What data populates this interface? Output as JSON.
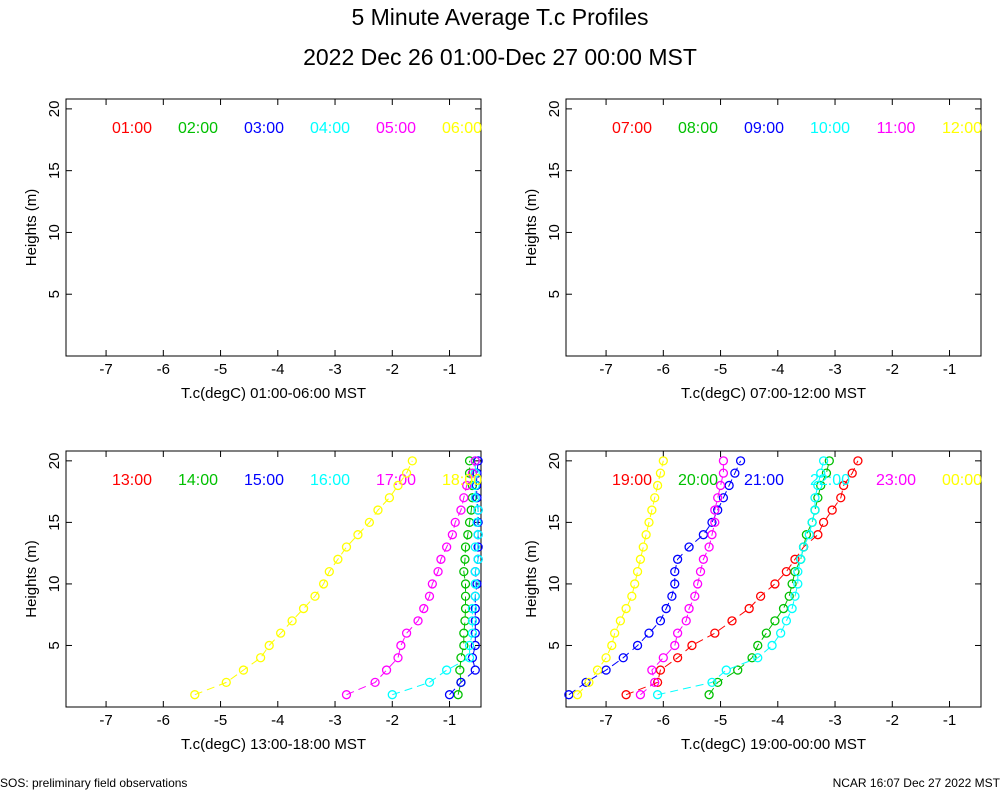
{
  "title": "5 Minute Average T.c Profiles",
  "subtitle": "2022 Dec 26 01:00-Dec 27 00:00 MST",
  "footer_left": "SOS: preliminary field observations",
  "footer_right": "NCAR 16:07 Dec 27 2022 MST",
  "chart_data": [
    {
      "type": "scatter",
      "xlabel": "T.c(degC) 01:00-06:00 MST",
      "ylabel": "Heights (m)",
      "xlim": [
        -7.7,
        -0.45
      ],
      "ylim": [
        0,
        20.8
      ],
      "xticks": [
        -7,
        -6,
        -5,
        -4,
        -3,
        -2,
        -1
      ],
      "yticks": [
        5,
        10,
        15,
        20
      ],
      "series": [
        {
          "name": "01:00",
          "color": "#ff0000",
          "points": []
        },
        {
          "name": "02:00",
          "color": "#00c000",
          "points": []
        },
        {
          "name": "03:00",
          "color": "#0000ff",
          "points": []
        },
        {
          "name": "04:00",
          "color": "#00ffff",
          "points": []
        },
        {
          "name": "05:00",
          "color": "#ff00ff",
          "points": []
        },
        {
          "name": "06:00",
          "color": "#ffff00",
          "points": []
        }
      ]
    },
    {
      "type": "scatter",
      "xlabel": "T.c(degC) 07:00-12:00 MST",
      "ylabel": "Heights (m)",
      "xlim": [
        -7.7,
        -0.45
      ],
      "ylim": [
        0,
        20.8
      ],
      "xticks": [
        -7,
        -6,
        -5,
        -4,
        -3,
        -2,
        -1
      ],
      "yticks": [
        5,
        10,
        15,
        20
      ],
      "series": [
        {
          "name": "07:00",
          "color": "#ff0000",
          "points": []
        },
        {
          "name": "08:00",
          "color": "#00c000",
          "points": []
        },
        {
          "name": "09:00",
          "color": "#0000ff",
          "points": []
        },
        {
          "name": "10:00",
          "color": "#00ffff",
          "points": []
        },
        {
          "name": "11:00",
          "color": "#ff00ff",
          "points": []
        },
        {
          "name": "12:00",
          "color": "#ffff00",
          "points": []
        }
      ]
    },
    {
      "type": "scatter",
      "xlabel": "T.c(degC) 13:00-18:00 MST",
      "ylabel": "Heights (m)",
      "xlim": [
        -7.7,
        -0.45
      ],
      "ylim": [
        0,
        20.8
      ],
      "xticks": [
        -7,
        -6,
        -5,
        -4,
        -3,
        -2,
        -1
      ],
      "yticks": [
        5,
        10,
        15,
        20
      ],
      "series": [
        {
          "name": "13:00",
          "color": "#ff0000",
          "points": []
        },
        {
          "name": "14:00",
          "color": "#00c000",
          "points": [
            [
              -0.85,
              1
            ],
            [
              -0.8,
              2
            ],
            [
              -0.82,
              3
            ],
            [
              -0.8,
              4
            ],
            [
              -0.75,
              5
            ],
            [
              -0.75,
              6
            ],
            [
              -0.73,
              7
            ],
            [
              -0.72,
              8
            ],
            [
              -0.72,
              9
            ],
            [
              -0.72,
              10
            ],
            [
              -0.75,
              11
            ],
            [
              -0.73,
              12
            ],
            [
              -0.72,
              13
            ],
            [
              -0.68,
              14
            ],
            [
              -0.65,
              15
            ],
            [
              -0.62,
              16
            ],
            [
              -0.6,
              17
            ],
            [
              -0.6,
              18
            ],
            [
              -0.65,
              19
            ],
            [
              -0.65,
              20
            ]
          ]
        },
        {
          "name": "15:00",
          "color": "#0000ff",
          "points": [
            [
              -1.0,
              1
            ],
            [
              -0.8,
              2
            ],
            [
              -0.55,
              3
            ],
            [
              -0.6,
              4
            ],
            [
              -0.55,
              5
            ],
            [
              -0.55,
              6
            ],
            [
              -0.55,
              7
            ],
            [
              -0.55,
              8
            ],
            [
              -0.55,
              9
            ],
            [
              -0.52,
              10
            ],
            [
              -0.55,
              11
            ],
            [
              -0.5,
              12
            ],
            [
              -0.5,
              13
            ],
            [
              -0.5,
              14
            ],
            [
              -0.5,
              15
            ],
            [
              -0.5,
              16
            ],
            [
              -0.52,
              17
            ],
            [
              -0.53,
              18
            ],
            [
              -0.52,
              19
            ],
            [
              -0.5,
              20
            ]
          ]
        },
        {
          "name": "16:00",
          "color": "#00ffff",
          "points": [
            [
              -2.0,
              1
            ],
            [
              -1.35,
              2
            ],
            [
              -1.05,
              3
            ],
            [
              -0.65,
              4
            ],
            [
              -0.65,
              5
            ],
            [
              -0.6,
              6
            ],
            [
              -0.6,
              7
            ],
            [
              -0.6,
              8
            ],
            [
              -0.55,
              9
            ],
            [
              -0.55,
              10
            ],
            [
              -0.55,
              11
            ],
            [
              -0.5,
              12
            ],
            [
              -0.55,
              13
            ],
            [
              -0.5,
              14
            ],
            [
              -0.52,
              15
            ],
            [
              -0.5,
              16
            ],
            [
              -0.55,
              17
            ],
            [
              -0.55,
              18
            ],
            [
              -0.55,
              19
            ],
            [
              -0.55,
              20
            ]
          ]
        },
        {
          "name": "17:00",
          "color": "#ff00ff",
          "points": [
            [
              -2.8,
              1
            ],
            [
              -2.3,
              2
            ],
            [
              -2.1,
              3
            ],
            [
              -1.9,
              4
            ],
            [
              -1.85,
              5
            ],
            [
              -1.75,
              6
            ],
            [
              -1.55,
              7
            ],
            [
              -1.45,
              8
            ],
            [
              -1.35,
              9
            ],
            [
              -1.3,
              10
            ],
            [
              -1.2,
              11
            ],
            [
              -1.15,
              12
            ],
            [
              -1.05,
              13
            ],
            [
              -0.95,
              14
            ],
            [
              -0.9,
              15
            ],
            [
              -0.8,
              16
            ],
            [
              -0.75,
              17
            ],
            [
              -0.7,
              18
            ],
            [
              -0.6,
              19
            ],
            [
              -0.55,
              20
            ]
          ]
        },
        {
          "name": "18:00",
          "color": "#ffff00",
          "points": [
            [
              -5.45,
              1
            ],
            [
              -4.9,
              2
            ],
            [
              -4.6,
              3
            ],
            [
              -4.3,
              4
            ],
            [
              -4.15,
              5
            ],
            [
              -3.95,
              6
            ],
            [
              -3.75,
              7
            ],
            [
              -3.55,
              8
            ],
            [
              -3.35,
              9
            ],
            [
              -3.2,
              10
            ],
            [
              -3.1,
              11
            ],
            [
              -2.95,
              12
            ],
            [
              -2.8,
              13
            ],
            [
              -2.6,
              14
            ],
            [
              -2.4,
              15
            ],
            [
              -2.25,
              16
            ],
            [
              -2.05,
              17
            ],
            [
              -1.9,
              18
            ],
            [
              -1.75,
              19
            ],
            [
              -1.65,
              20
            ]
          ]
        }
      ]
    },
    {
      "type": "scatter",
      "xlabel": "T.c(degC) 19:00-00:00 MST",
      "ylabel": "Heights (m)",
      "xlim": [
        -7.7,
        -0.45
      ],
      "ylim": [
        0,
        20.8
      ],
      "xticks": [
        -7,
        -6,
        -5,
        -4,
        -3,
        -2,
        -1
      ],
      "yticks": [
        5,
        10,
        15,
        20
      ],
      "series": [
        {
          "name": "19:00",
          "color": "#ff0000",
          "points": [
            [
              -6.65,
              1
            ],
            [
              -6.1,
              2
            ],
            [
              -6.05,
              3
            ],
            [
              -5.75,
              4
            ],
            [
              -5.5,
              5
            ],
            [
              -5.1,
              6
            ],
            [
              -4.8,
              7
            ],
            [
              -4.5,
              8
            ],
            [
              -4.3,
              9
            ],
            [
              -4.05,
              10
            ],
            [
              -3.85,
              11
            ],
            [
              -3.7,
              12
            ],
            [
              -3.55,
              13
            ],
            [
              -3.3,
              14
            ],
            [
              -3.2,
              15
            ],
            [
              -3.05,
              16
            ],
            [
              -2.9,
              17
            ],
            [
              -2.85,
              18
            ],
            [
              -2.7,
              19
            ],
            [
              -2.6,
              20
            ]
          ]
        },
        {
          "name": "20:00",
          "color": "#00c000",
          "points": [
            [
              -5.2,
              1
            ],
            [
              -5.05,
              2
            ],
            [
              -4.7,
              3
            ],
            [
              -4.45,
              4
            ],
            [
              -4.35,
              5
            ],
            [
              -4.2,
              6
            ],
            [
              -4.05,
              7
            ],
            [
              -3.9,
              8
            ],
            [
              -3.8,
              9
            ],
            [
              -3.75,
              10
            ],
            [
              -3.7,
              11
            ],
            [
              -3.6,
              12
            ],
            [
              -3.55,
              13
            ],
            [
              -3.5,
              14
            ],
            [
              -3.4,
              15
            ],
            [
              -3.35,
              16
            ],
            [
              -3.3,
              17
            ],
            [
              -3.25,
              18
            ],
            [
              -3.15,
              19
            ],
            [
              -3.1,
              20
            ]
          ]
        },
        {
          "name": "21:00",
          "color": "#0000ff",
          "points": [
            [
              -7.65,
              1
            ],
            [
              -7.35,
              2
            ],
            [
              -7.0,
              3
            ],
            [
              -6.7,
              4
            ],
            [
              -6.45,
              5
            ],
            [
              -6.25,
              6
            ],
            [
              -6.05,
              7
            ],
            [
              -5.95,
              8
            ],
            [
              -5.85,
              9
            ],
            [
              -5.8,
              10
            ],
            [
              -5.8,
              11
            ],
            [
              -5.75,
              12
            ],
            [
              -5.55,
              13
            ],
            [
              -5.3,
              14
            ],
            [
              -5.15,
              15
            ],
            [
              -5.05,
              16
            ],
            [
              -4.95,
              17
            ],
            [
              -4.85,
              18
            ],
            [
              -4.75,
              19
            ],
            [
              -4.65,
              20
            ]
          ]
        },
        {
          "name": "22:00",
          "color": "#00ffff",
          "points": [
            [
              -6.1,
              1
            ],
            [
              -5.15,
              2
            ],
            [
              -4.9,
              3
            ],
            [
              -4.35,
              4
            ],
            [
              -4.1,
              5
            ],
            [
              -3.95,
              6
            ],
            [
              -3.85,
              7
            ],
            [
              -3.75,
              8
            ],
            [
              -3.7,
              9
            ],
            [
              -3.65,
              10
            ],
            [
              -3.65,
              11
            ],
            [
              -3.6,
              12
            ],
            [
              -3.55,
              13
            ],
            [
              -3.45,
              14
            ],
            [
              -3.4,
              15
            ],
            [
              -3.35,
              16
            ],
            [
              -3.35,
              17
            ],
            [
              -3.3,
              18
            ],
            [
              -3.25,
              19
            ],
            [
              -3.2,
              20
            ]
          ]
        },
        {
          "name": "23:00",
          "color": "#ff00ff",
          "points": [
            [
              -6.4,
              1
            ],
            [
              -6.15,
              2
            ],
            [
              -6.2,
              3
            ],
            [
              -6.0,
              4
            ],
            [
              -5.8,
              5
            ],
            [
              -5.75,
              6
            ],
            [
              -5.6,
              7
            ],
            [
              -5.55,
              8
            ],
            [
              -5.45,
              9
            ],
            [
              -5.4,
              10
            ],
            [
              -5.35,
              11
            ],
            [
              -5.3,
              12
            ],
            [
              -5.2,
              13
            ],
            [
              -5.15,
              14
            ],
            [
              -5.1,
              15
            ],
            [
              -5.1,
              16
            ],
            [
              -5.05,
              17
            ],
            [
              -5.0,
              18
            ],
            [
              -4.95,
              19
            ],
            [
              -4.95,
              20
            ]
          ]
        },
        {
          "name": "00:00",
          "color": "#ffff00",
          "points": [
            [
              -7.5,
              1
            ],
            [
              -7.3,
              2
            ],
            [
              -7.15,
              3
            ],
            [
              -7.0,
              4
            ],
            [
              -6.9,
              5
            ],
            [
              -6.85,
              6
            ],
            [
              -6.75,
              7
            ],
            [
              -6.65,
              8
            ],
            [
              -6.55,
              9
            ],
            [
              -6.5,
              10
            ],
            [
              -6.45,
              11
            ],
            [
              -6.4,
              12
            ],
            [
              -6.35,
              13
            ],
            [
              -6.3,
              14
            ],
            [
              -6.25,
              15
            ],
            [
              -6.2,
              16
            ],
            [
              -6.15,
              17
            ],
            [
              -6.1,
              18
            ],
            [
              -6.05,
              19
            ],
            [
              -6.0,
              20
            ]
          ]
        }
      ]
    }
  ]
}
